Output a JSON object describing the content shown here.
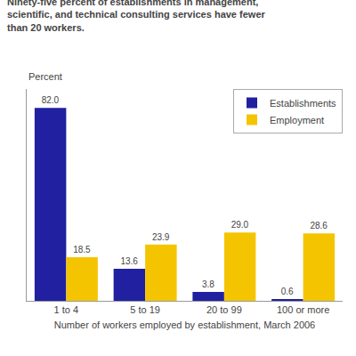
{
  "chart_data": {
    "type": "bar",
    "title": "Ninety-five percent of establishments in management,\nscientific, and technical consulting services have fewer\nthan 20 workers.",
    "ylabel": "Percent",
    "xlabel": "Number of workers employed by establishment, March 2006",
    "categories": [
      "1 to 4",
      "5 to 19",
      "20 to 99",
      "100 or more"
    ],
    "series": [
      {
        "name": "Establishments",
        "color": "#2020a0",
        "values": [
          82.0,
          13.6,
          3.8,
          0.6
        ],
        "value_labels": [
          "82.0",
          "13.6",
          "3.8",
          "0.6"
        ]
      },
      {
        "name": "Employment",
        "color": "#f5c400",
        "values": [
          18.5,
          23.9,
          29.0,
          28.6
        ],
        "value_labels": [
          "18.5",
          "23.9",
          "29.0",
          "28.6"
        ]
      }
    ],
    "ylim": [
      0,
      90
    ],
    "grid": false,
    "legend": "upper right",
    "data_labels": true,
    "tick_labels": "x"
  }
}
